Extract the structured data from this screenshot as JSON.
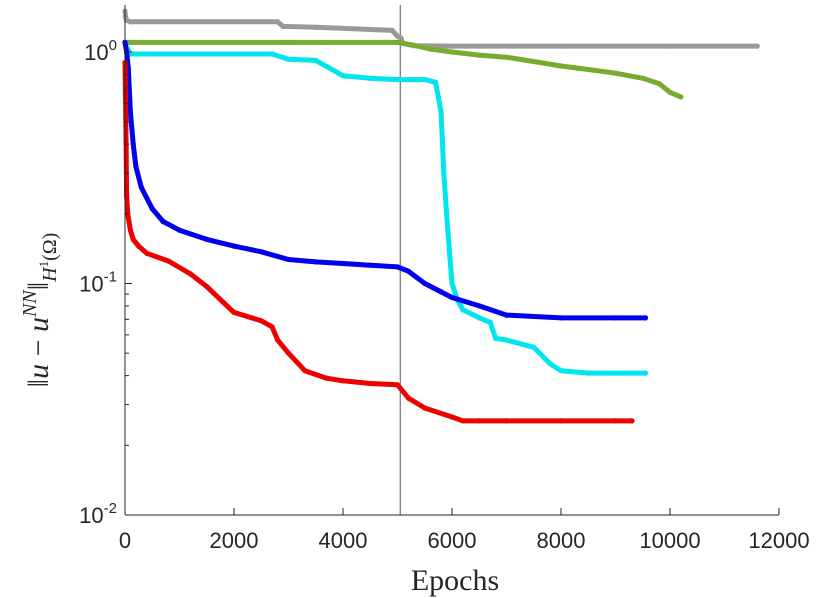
{
  "chart_data": {
    "type": "scatter",
    "title": "",
    "xlabel": "Epochs",
    "ylabel": {
      "norm_left": "‖",
      "u": "u",
      "minus": " − ",
      "u2": "u",
      "sup": "NN",
      "norm_right": "‖",
      "sub": "H",
      "sub_exp": "1",
      "sub_arg": "(Ω)"
    },
    "xlim": [
      0,
      12000
    ],
    "ylim": [
      0.01,
      1.5
    ],
    "yscale": "log",
    "grid": false,
    "legend": "none",
    "x_ticks": [
      0,
      2000,
      4000,
      6000,
      8000,
      10000,
      12000
    ],
    "x_tick_labels": [
      "0",
      "2000",
      "4000",
      "6000",
      "8000",
      "10000",
      "12000"
    ],
    "y_ticks": [
      {
        "value": 0.01,
        "base": "10",
        "exp": "-2"
      },
      {
        "value": 0.1,
        "base": "10",
        "exp": "-1"
      },
      {
        "value": 1,
        "base": "10",
        "exp": "0"
      }
    ],
    "vline_x": 5050,
    "series": [
      {
        "color": "#999999",
        "points": [
          [
            0,
            1.5
          ],
          [
            10,
            1.42
          ],
          [
            30,
            1.37
          ],
          [
            100,
            1.35
          ],
          [
            2800,
            1.35
          ],
          [
            2900,
            1.29
          ],
          [
            3500,
            1.28
          ],
          [
            4200,
            1.26
          ],
          [
            4900,
            1.24
          ],
          [
            5000,
            1.17
          ],
          [
            5060,
            1.15
          ],
          [
            5100,
            1.09
          ],
          [
            5300,
            1.065
          ],
          [
            6000,
            1.06
          ],
          [
            8000,
            1.06
          ],
          [
            10000,
            1.06
          ],
          [
            11600,
            1.06
          ]
        ]
      },
      {
        "color": "#77ac30",
        "points": [
          [
            0,
            1.1
          ],
          [
            100,
            1.1
          ],
          [
            3000,
            1.1
          ],
          [
            5000,
            1.1
          ],
          [
            5300,
            1.07
          ],
          [
            5600,
            1.03
          ],
          [
            6000,
            1.0
          ],
          [
            6500,
            0.97
          ],
          [
            7000,
            0.95
          ],
          [
            7500,
            0.91
          ],
          [
            8000,
            0.87
          ],
          [
            8500,
            0.84
          ],
          [
            9000,
            0.81
          ],
          [
            9500,
            0.77
          ],
          [
            9800,
            0.73
          ],
          [
            10000,
            0.67
          ],
          [
            10200,
            0.64
          ]
        ]
      },
      {
        "color": "#00e5ee",
        "points": [
          [
            0,
            1.1
          ],
          [
            30,
            1.05
          ],
          [
            100,
            0.98
          ],
          [
            2700,
            0.98
          ],
          [
            3000,
            0.93
          ],
          [
            3500,
            0.92
          ],
          [
            4000,
            0.79
          ],
          [
            4500,
            0.77
          ],
          [
            5000,
            0.76
          ],
          [
            5500,
            0.76
          ],
          [
            5700,
            0.74
          ],
          [
            5800,
            0.55
          ],
          [
            5850,
            0.3
          ],
          [
            5900,
            0.2
          ],
          [
            5950,
            0.14
          ],
          [
            6000,
            0.1
          ],
          [
            6100,
            0.085
          ],
          [
            6200,
            0.077
          ],
          [
            6500,
            0.071
          ],
          [
            6700,
            0.068
          ],
          [
            6800,
            0.058
          ],
          [
            7000,
            0.057
          ],
          [
            7500,
            0.053
          ],
          [
            7800,
            0.045
          ],
          [
            8000,
            0.042
          ],
          [
            8500,
            0.041
          ],
          [
            9000,
            0.041
          ],
          [
            9550,
            0.041
          ]
        ]
      },
      {
        "color": "#0000ee",
        "points": [
          [
            0,
            1.1
          ],
          [
            30,
            1.0
          ],
          [
            60,
            0.85
          ],
          [
            100,
            0.55
          ],
          [
            150,
            0.4
          ],
          [
            200,
            0.32
          ],
          [
            300,
            0.26
          ],
          [
            500,
            0.21
          ],
          [
            700,
            0.185
          ],
          [
            1000,
            0.17
          ],
          [
            1500,
            0.155
          ],
          [
            2000,
            0.145
          ],
          [
            2500,
            0.137
          ],
          [
            3000,
            0.127
          ],
          [
            3500,
            0.124
          ],
          [
            4000,
            0.122
          ],
          [
            4500,
            0.12
          ],
          [
            5000,
            0.118
          ],
          [
            5200,
            0.113
          ],
          [
            5500,
            0.1
          ],
          [
            5800,
            0.092
          ],
          [
            6000,
            0.087
          ],
          [
            6500,
            0.08
          ],
          [
            7000,
            0.073
          ],
          [
            8000,
            0.071
          ],
          [
            9000,
            0.071
          ],
          [
            9550,
            0.071
          ]
        ]
      },
      {
        "color": "#ee0000",
        "points": [
          [
            0,
            0.9
          ],
          [
            10,
            0.65
          ],
          [
            20,
            0.4
          ],
          [
            30,
            0.24
          ],
          [
            50,
            0.2
          ],
          [
            100,
            0.17
          ],
          [
            150,
            0.155
          ],
          [
            250,
            0.145
          ],
          [
            400,
            0.135
          ],
          [
            800,
            0.125
          ],
          [
            1200,
            0.11
          ],
          [
            1500,
            0.097
          ],
          [
            1800,
            0.083
          ],
          [
            2000,
            0.075
          ],
          [
            2500,
            0.069
          ],
          [
            2700,
            0.065
          ],
          [
            2800,
            0.057
          ],
          [
            3000,
            0.05
          ],
          [
            3300,
            0.042
          ],
          [
            3700,
            0.039
          ],
          [
            4000,
            0.038
          ],
          [
            4500,
            0.037
          ],
          [
            5000,
            0.0365
          ],
          [
            5200,
            0.032
          ],
          [
            5500,
            0.029
          ],
          [
            6000,
            0.0265
          ],
          [
            6200,
            0.0255
          ],
          [
            6500,
            0.0255
          ],
          [
            7000,
            0.0255
          ],
          [
            8000,
            0.0255
          ],
          [
            9000,
            0.0255
          ],
          [
            9300,
            0.0255
          ]
        ]
      }
    ]
  }
}
